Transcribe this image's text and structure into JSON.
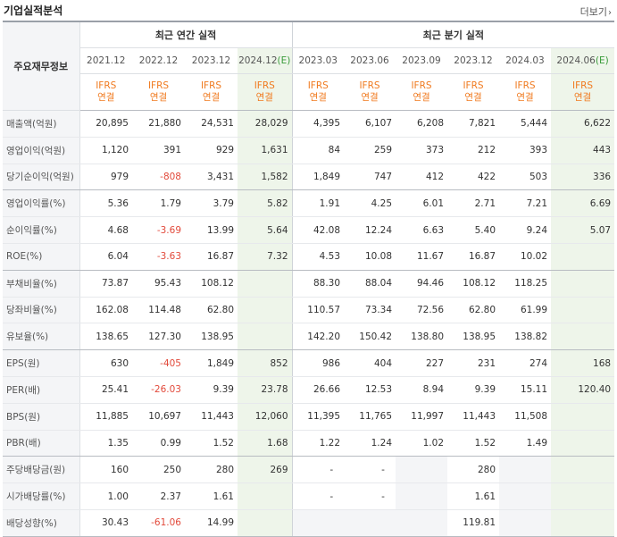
{
  "page": {
    "title": "기업실적분석",
    "more_label": "더보기"
  },
  "table": {
    "corner_label": "주요재무정보",
    "annual_group": "최근 연간 실적",
    "quarter_group": "최근 분기 실적",
    "periods": [
      "2021.12",
      "2022.12",
      "2023.12",
      "2024.12",
      "2023.03",
      "2023.06",
      "2023.09",
      "2023.12",
      "2024.03",
      "2024.06"
    ],
    "estimate_suffix": "(E)",
    "standard_top": "IFRS",
    "standard_bottom": "연결",
    "rows": [
      {
        "label": "매출액(억원)",
        "values": [
          "20,895",
          "21,880",
          "24,531",
          "28,029",
          "4,395",
          "6,107",
          "6,208",
          "7,821",
          "5,444",
          "6,622"
        ]
      },
      {
        "label": "영업이익(억원)",
        "values": [
          "1,120",
          "391",
          "929",
          "1,631",
          "84",
          "259",
          "373",
          "212",
          "393",
          "443"
        ]
      },
      {
        "label": "당기순이익(억원)",
        "values": [
          "979",
          "-808",
          "3,431",
          "1,582",
          "1,849",
          "747",
          "412",
          "422",
          "503",
          "336"
        ]
      },
      {
        "label": "영업이익률(%)",
        "values": [
          "5.36",
          "1.79",
          "3.79",
          "5.82",
          "1.91",
          "4.25",
          "6.01",
          "2.71",
          "7.21",
          "6.69"
        ]
      },
      {
        "label": "순이익률(%)",
        "values": [
          "4.68",
          "-3.69",
          "13.99",
          "5.64",
          "42.08",
          "12.24",
          "6.63",
          "5.40",
          "9.24",
          "5.07"
        ]
      },
      {
        "label": "ROE(%)",
        "values": [
          "6.04",
          "-3.63",
          "16.87",
          "7.32",
          "4.53",
          "10.08",
          "11.67",
          "16.87",
          "10.02",
          ""
        ]
      },
      {
        "label": "부채비율(%)",
        "values": [
          "73.87",
          "95.43",
          "108.12",
          "",
          "88.30",
          "88.04",
          "94.46",
          "108.12",
          "118.25",
          ""
        ]
      },
      {
        "label": "당좌비율(%)",
        "values": [
          "162.08",
          "114.48",
          "62.80",
          "",
          "110.57",
          "73.34",
          "72.56",
          "62.80",
          "61.99",
          ""
        ]
      },
      {
        "label": "유보율(%)",
        "values": [
          "138.65",
          "127.30",
          "138.95",
          "",
          "142.20",
          "150.42",
          "138.80",
          "138.95",
          "138.82",
          ""
        ]
      },
      {
        "label": "EPS(원)",
        "values": [
          "630",
          "-405",
          "1,849",
          "852",
          "986",
          "404",
          "227",
          "231",
          "274",
          "168"
        ]
      },
      {
        "label": "PER(배)",
        "values": [
          "25.41",
          "-26.03",
          "9.39",
          "23.78",
          "26.66",
          "12.53",
          "8.94",
          "9.39",
          "15.11",
          "120.40"
        ]
      },
      {
        "label": "BPS(원)",
        "values": [
          "11,885",
          "10,697",
          "11,443",
          "12,060",
          "11,395",
          "11,765",
          "11,997",
          "11,443",
          "11,508",
          ""
        ]
      },
      {
        "label": "PBR(배)",
        "values": [
          "1.35",
          "0.99",
          "1.52",
          "1.68",
          "1.22",
          "1.24",
          "1.02",
          "1.52",
          "1.49",
          ""
        ]
      },
      {
        "label": "주당배당금(원)",
        "values": [
          "160",
          "250",
          "280",
          "269",
          "-",
          "-",
          "",
          "280",
          "",
          ""
        ]
      },
      {
        "label": "시가배당률(%)",
        "values": [
          "1.00",
          "2.37",
          "1.61",
          "",
          "-",
          "-",
          "",
          "1.61",
          "",
          ""
        ]
      },
      {
        "label": "배당성향(%)",
        "values": [
          "30.43",
          "-61.06",
          "14.99",
          "",
          "",
          "",
          "",
          "119.81",
          "",
          ""
        ]
      }
    ]
  },
  "colors": {
    "ifrs": "#f07a1f",
    "negative": "#e24a3b",
    "estimate_bg": "#eef5ea",
    "estimate_label": "#3a9b3a",
    "header_bg": "#f4f5f7"
  }
}
